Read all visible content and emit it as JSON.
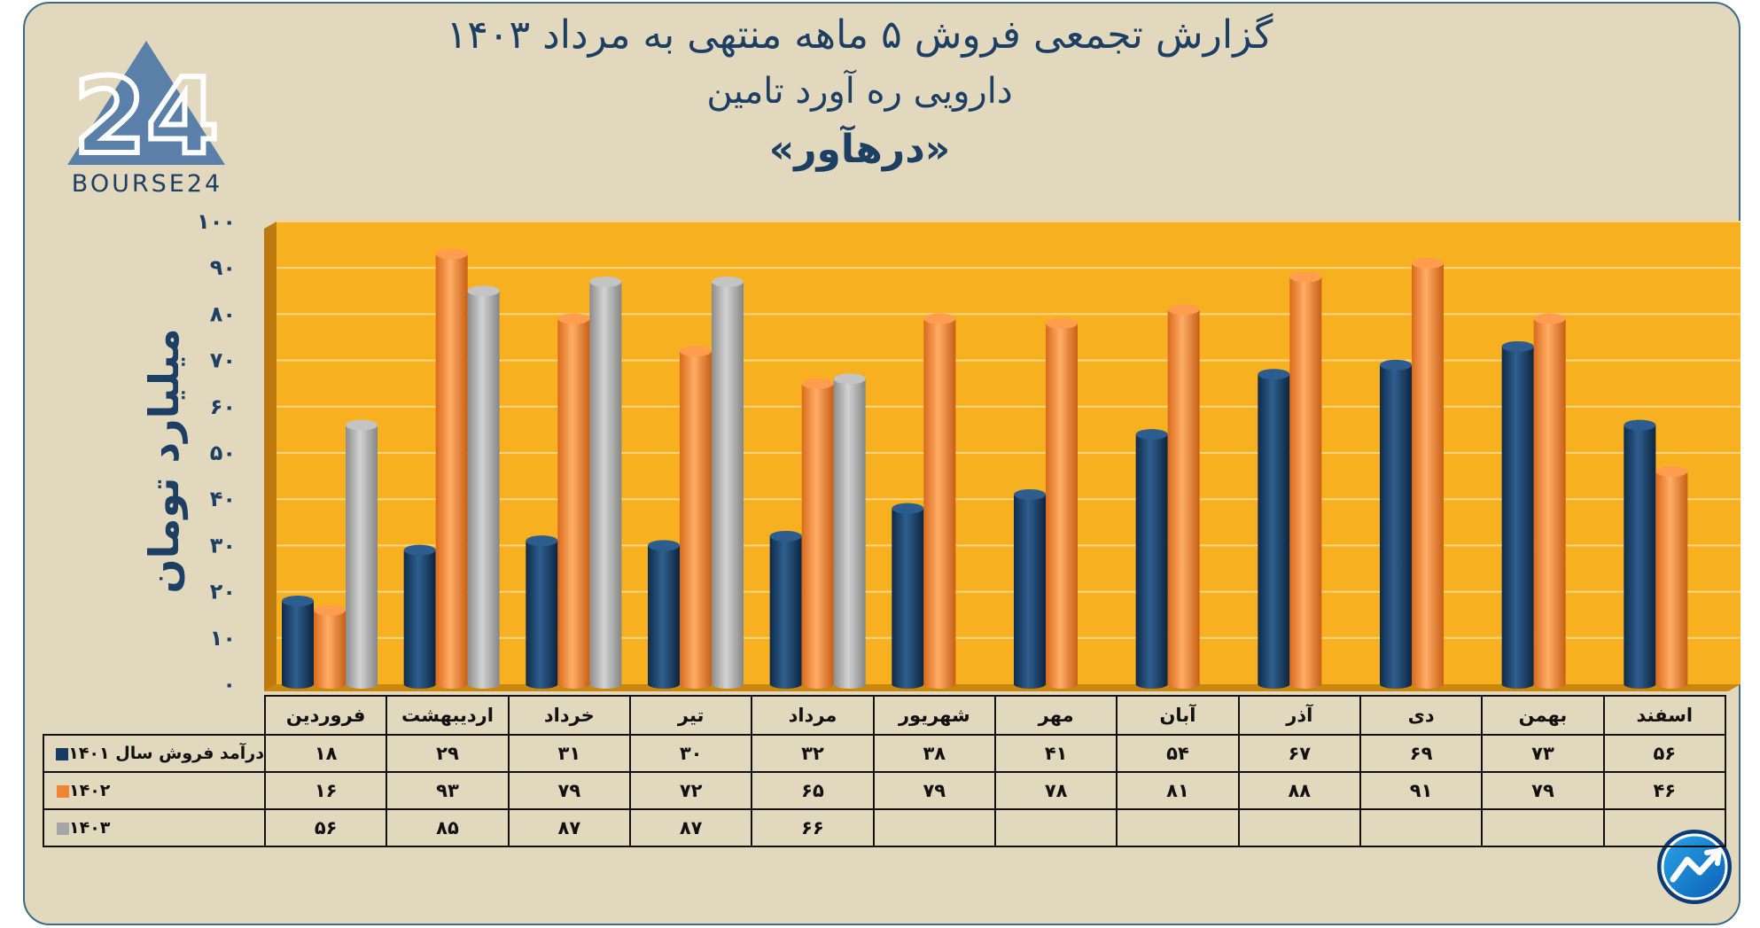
{
  "header": {
    "title_line1": "گزارش تجمعی فروش ۵ ماهه منتهی به مرداد ۱۴۰۳",
    "title_line2": "دارویی ره آورد تامین",
    "title_line3": "«درهآور»"
  },
  "logo": {
    "text": "BOURSE24",
    "mark_digits": "24",
    "icon": "bourse24-triangle-logo"
  },
  "badge": {
    "icon": "trend-arrow-badge-icon"
  },
  "chart_data": {
    "type": "bar",
    "title": "گزارش تجمعی فروش ۵ ماهه منتهی به مرداد ۱۴۰۳",
    "ylabel": "میلیارد تومان",
    "ylim": [
      0,
      100
    ],
    "yticks": [
      "۰",
      "۱۰",
      "۲۰",
      "۳۰",
      "۴۰",
      "۵۰",
      "۶۰",
      "۷۰",
      "۸۰",
      "۹۰",
      "۱۰۰"
    ],
    "ytick_values": [
      0,
      10,
      20,
      30,
      40,
      50,
      60,
      70,
      80,
      90,
      100
    ],
    "categories": [
      "فروردین",
      "اردیبهشت",
      "خرداد",
      "تیر",
      "مرداد",
      "شهریور",
      "مهر",
      "آبان",
      "آذر",
      "دی",
      "بهمن",
      "اسفند"
    ],
    "grid": true,
    "legend_placement": "table-left",
    "series": [
      {
        "name": "درآمد فروش سال ۱۴۰۱",
        "color": "#173c63",
        "values": [
          18,
          29,
          31,
          30,
          32,
          38,
          41,
          54,
          67,
          69,
          73,
          56
        ],
        "labels": [
          "۱۸",
          "۲۹",
          "۳۱",
          "۳۰",
          "۳۲",
          "۳۸",
          "۴۱",
          "۵۴",
          "۶۷",
          "۶۹",
          "۷۳",
          "۵۶"
        ]
      },
      {
        "name": "۱۴۰۲",
        "color": "#ef8530",
        "values": [
          16,
          93,
          79,
          72,
          65,
          79,
          78,
          81,
          88,
          91,
          79,
          46
        ],
        "labels": [
          "۱۶",
          "۹۳",
          "۷۹",
          "۷۲",
          "۶۵",
          "۷۹",
          "۷۸",
          "۸۱",
          "۸۸",
          "۹۱",
          "۷۹",
          "۴۶"
        ]
      },
      {
        "name": "۱۴۰۳",
        "color": "#a6a6a6",
        "values": [
          56,
          85,
          87,
          87,
          66,
          null,
          null,
          null,
          null,
          null,
          null,
          null
        ],
        "labels": [
          "۵۶",
          "۸۵",
          "۸۷",
          "۸۷",
          "۶۶",
          "",
          "",
          "",
          "",
          "",
          "",
          ""
        ]
      }
    ]
  }
}
